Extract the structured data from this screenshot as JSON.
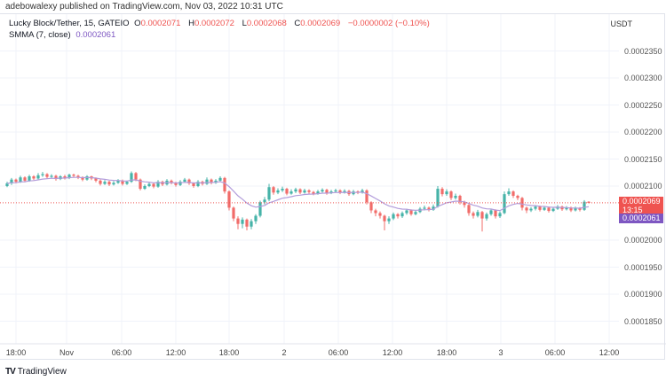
{
  "published": "adebowalexy published on TradingView.com, Nov 03, 2022 10:31 UTC",
  "legend": {
    "symbol": "Lucky Block/Tether, 15, GATEIO",
    "o_label": "O",
    "o": "0.0002071",
    "h_label": "H",
    "h": "0.0002072",
    "l_label": "L",
    "l": "0.0002068",
    "c_label": "C",
    "c": "0.0002069",
    "change": "−0.0000002 (−0.10%)",
    "indicator": "SMMA (7, close)",
    "indicator_value": "0.0002061"
  },
  "currency": "USDT",
  "price_label": {
    "value": "0.0002069",
    "countdown": "13:15"
  },
  "smma_label": "0.0002061",
  "footer_brand": "TradingView",
  "colors": {
    "up": "#26a69a",
    "down": "#ef5350",
    "smma": "#b39ddb",
    "price_line": "#ef5350",
    "smma_badge": "#7e57c2",
    "grid": "#f0f3fa"
  },
  "chart_data": {
    "type": "candlestick",
    "interval": "15",
    "ylim": [
      0.000183,
      0.0002385
    ],
    "grid": true,
    "y_ticks": [
      "0.0002350",
      "0.0002300",
      "0.0002250",
      "0.0002200",
      "0.0002150",
      "0.0002100",
      "0.0002000",
      "0.0001950",
      "0.0001900",
      "0.0001850"
    ],
    "x_ticks": [
      "18:00",
      "Nov",
      "06:00",
      "12:00",
      "18:00",
      "2",
      "06:00",
      "12:00",
      "18:00",
      "3",
      "06:00",
      "12:00"
    ],
    "smma_period": 7,
    "ohlc": [
      [
        0.00021,
        0.0002108,
        0.0002098,
        0.0002105
      ],
      [
        0.0002105,
        0.0002115,
        0.0002102,
        0.0002112
      ],
      [
        0.0002112,
        0.0002114,
        0.0002105,
        0.0002108
      ],
      [
        0.0002108,
        0.0002119,
        0.0002106,
        0.0002116
      ],
      [
        0.0002116,
        0.0002118,
        0.0002107,
        0.000211
      ],
      [
        0.000211,
        0.0002121,
        0.0002108,
        0.0002118
      ],
      [
        0.0002118,
        0.000212,
        0.0002111,
        0.0002114
      ],
      [
        0.0002114,
        0.0002124,
        0.0002112,
        0.000212
      ],
      [
        0.000212,
        0.0002126,
        0.0002117,
        0.0002122
      ],
      [
        0.0002122,
        0.0002124,
        0.0002114,
        0.0002117
      ],
      [
        0.0002117,
        0.0002122,
        0.0002115,
        0.0002119
      ],
      [
        0.0002119,
        0.0002121,
        0.000211,
        0.0002113
      ],
      [
        0.0002113,
        0.000212,
        0.0002111,
        0.0002118
      ],
      [
        0.0002118,
        0.0002121,
        0.0002112,
        0.0002115
      ],
      [
        0.0002115,
        0.0002123,
        0.0002113,
        0.0002121
      ],
      [
        0.0002121,
        0.0002123,
        0.0002116,
        0.0002119
      ],
      [
        0.0002119,
        0.0002121,
        0.0002113,
        0.0002116
      ],
      [
        0.0002116,
        0.0002118,
        0.0002109,
        0.0002112
      ],
      [
        0.0002112,
        0.000212,
        0.000211,
        0.0002118
      ],
      [
        0.0002118,
        0.0002119,
        0.0002111,
        0.0002114
      ],
      [
        0.0002114,
        0.0002116,
        0.0002107,
        0.000211
      ],
      [
        0.000211,
        0.0002112,
        0.0002101,
        0.0002104
      ],
      [
        0.0002104,
        0.0002111,
        0.0002102,
        0.0002108
      ],
      [
        0.0002108,
        0.000211,
        0.00021,
        0.0002103
      ],
      [
        0.0002103,
        0.0002109,
        0.0002101,
        0.0002106
      ],
      [
        0.0002106,
        0.0002113,
        0.0002104,
        0.000211
      ],
      [
        0.000211,
        0.0002112,
        0.0002101,
        0.0002104
      ],
      [
        0.0002104,
        0.000211,
        0.0002102,
        0.0002108
      ],
      [
        0.0002108,
        0.0002127,
        0.0002106,
        0.0002124
      ],
      [
        0.0002124,
        0.0002126,
        0.0002109,
        0.0002112
      ],
      [
        0.0002112,
        0.0002114,
        0.0002092,
        0.0002095
      ],
      [
        0.0002095,
        0.0002103,
        0.0002093,
        0.00021
      ],
      [
        0.00021,
        0.0002107,
        0.0002098,
        0.0002104
      ],
      [
        0.0002104,
        0.0002106,
        0.0002096,
        0.0002099
      ],
      [
        0.0002099,
        0.0002111,
        0.0002097,
        0.0002108
      ],
      [
        0.0002108,
        0.000211,
        0.00021,
        0.0002103
      ],
      [
        0.0002103,
        0.0002113,
        0.0002101,
        0.000211
      ],
      [
        0.000211,
        0.0002112,
        0.0002103,
        0.0002106
      ],
      [
        0.0002106,
        0.0002108,
        0.0002099,
        0.0002102
      ],
      [
        0.0002102,
        0.0002111,
        0.00021,
        0.0002108
      ],
      [
        0.0002108,
        0.0002115,
        0.0002106,
        0.0002112
      ],
      [
        0.0002112,
        0.0002114,
        0.0002102,
        0.0002105
      ],
      [
        0.0002105,
        0.0002107,
        0.0002097,
        0.00021
      ],
      [
        0.00021,
        0.0002111,
        0.0002098,
        0.0002108
      ],
      [
        0.0002108,
        0.000211,
        0.0002101,
        0.0002104
      ],
      [
        0.0002104,
        0.0002116,
        0.0002102,
        0.0002112
      ],
      [
        0.0002112,
        0.0002114,
        0.0002103,
        0.0002106
      ],
      [
        0.0002106,
        0.0002113,
        0.0002104,
        0.000211
      ],
      [
        0.000211,
        0.0002118,
        0.0002108,
        0.0002115
      ],
      [
        0.0002115,
        0.0002117,
        0.0002086,
        0.000209
      ],
      [
        0.000209,
        0.0002092,
        0.0002055,
        0.000206
      ],
      [
        0.000206,
        0.0002062,
        0.0002035,
        0.000204
      ],
      [
        0.000204,
        0.0002044,
        0.000202,
        0.000203
      ],
      [
        0.000203,
        0.0002042,
        0.0002022,
        0.0002038
      ],
      [
        0.0002038,
        0.000204,
        0.0002018,
        0.0002025
      ],
      [
        0.0002025,
        0.0002039,
        0.000202,
        0.0002035
      ],
      [
        0.0002035,
        0.0002048,
        0.000203,
        0.0002045
      ],
      [
        0.0002045,
        0.0002073,
        0.0002042,
        0.000207
      ],
      [
        0.000207,
        0.000208,
        0.0002066,
        0.0002075
      ],
      [
        0.0002075,
        0.0002104,
        0.0002072,
        0.0002098
      ],
      [
        0.0002098,
        0.00021,
        0.0002084,
        0.0002088
      ],
      [
        0.0002088,
        0.0002096,
        0.0002085,
        0.0002092
      ],
      [
        0.0002092,
        0.0002099,
        0.0002089,
        0.0002095
      ],
      [
        0.0002095,
        0.0002097,
        0.0002083,
        0.0002086
      ],
      [
        0.0002086,
        0.0002094,
        0.0002084,
        0.000209
      ],
      [
        0.000209,
        0.0002097,
        0.0002087,
        0.0002094
      ],
      [
        0.0002094,
        0.0002096,
        0.0002085,
        0.0002088
      ],
      [
        0.0002088,
        0.0002095,
        0.0002086,
        0.0002092
      ],
      [
        0.0002092,
        0.0002094,
        0.0002086,
        0.0002089
      ],
      [
        0.0002089,
        0.0002091,
        0.0002083,
        0.0002086
      ],
      [
        0.0002086,
        0.0002093,
        0.0002084,
        0.000209
      ],
      [
        0.000209,
        0.0002096,
        0.0002088,
        0.0002093
      ],
      [
        0.0002093,
        0.0002095,
        0.0002084,
        0.0002087
      ],
      [
        0.0002087,
        0.0002093,
        0.0002085,
        0.000209
      ],
      [
        0.000209,
        0.0002095,
        0.0002088,
        0.0002092
      ],
      [
        0.0002092,
        0.0002094,
        0.0002085,
        0.0002088
      ],
      [
        0.0002088,
        0.0002094,
        0.0002086,
        0.0002091
      ],
      [
        0.0002091,
        0.0002093,
        0.0002082,
        0.0002085
      ],
      [
        0.0002085,
        0.0002093,
        0.0002083,
        0.000209
      ],
      [
        0.000209,
        0.0002092,
        0.0002085,
        0.0002088
      ],
      [
        0.0002088,
        0.0002095,
        0.0002086,
        0.0002092
      ],
      [
        0.0002092,
        0.0002094,
        0.0002066,
        0.000207
      ],
      [
        0.000207,
        0.0002072,
        0.000205,
        0.0002055
      ],
      [
        0.0002055,
        0.0002058,
        0.0002044,
        0.000205
      ],
      [
        0.000205,
        0.0002053,
        0.000204,
        0.0002045
      ],
      [
        0.0002045,
        0.0002047,
        0.0002018,
        0.0002035
      ],
      [
        0.0002035,
        0.0002044,
        0.000203,
        0.000204
      ],
      [
        0.000204,
        0.0002051,
        0.0002037,
        0.0002048
      ],
      [
        0.0002048,
        0.000205,
        0.000204,
        0.0002044
      ],
      [
        0.0002044,
        0.0002053,
        0.0002041,
        0.000205
      ],
      [
        0.000205,
        0.0002058,
        0.0002047,
        0.0002055
      ],
      [
        0.0002055,
        0.0002057,
        0.0002045,
        0.0002048
      ],
      [
        0.0002048,
        0.0002055,
        0.0002046,
        0.0002052
      ],
      [
        0.0002052,
        0.0002061,
        0.000205,
        0.0002058
      ],
      [
        0.0002058,
        0.0002064,
        0.0002055,
        0.000206
      ],
      [
        0.000206,
        0.0002062,
        0.0002053,
        0.0002056
      ],
      [
        0.0002056,
        0.0002066,
        0.0002054,
        0.0002062
      ],
      [
        0.0002062,
        0.00021,
        0.000206,
        0.0002095
      ],
      [
        0.0002095,
        0.0002098,
        0.0002081,
        0.0002085
      ],
      [
        0.0002085,
        0.0002094,
        0.0002082,
        0.000209
      ],
      [
        0.000209,
        0.0002092,
        0.0002074,
        0.0002078
      ],
      [
        0.0002078,
        0.0002086,
        0.0002075,
        0.0002082
      ],
      [
        0.0002082,
        0.0002084,
        0.0002066,
        0.000207
      ],
      [
        0.000207,
        0.0002073,
        0.000206,
        0.0002065
      ],
      [
        0.0002065,
        0.0002067,
        0.0002045,
        0.000205
      ],
      [
        0.000205,
        0.0002053,
        0.000204,
        0.0002045
      ],
      [
        0.0002045,
        0.0002056,
        0.0002042,
        0.0002052
      ],
      [
        0.0002052,
        0.0002054,
        0.0002016,
        0.000204
      ],
      [
        0.000204,
        0.0002051,
        0.0002036,
        0.0002048
      ],
      [
        0.0002048,
        0.0002058,
        0.0002045,
        0.0002055
      ],
      [
        0.0002055,
        0.0002057,
        0.000204,
        0.0002044
      ],
      [
        0.0002044,
        0.0002053,
        0.0002041,
        0.000205
      ],
      [
        0.000205,
        0.000209,
        0.0002048,
        0.0002085
      ],
      [
        0.0002085,
        0.0002096,
        0.0002082,
        0.000209
      ],
      [
        0.000209,
        0.0002092,
        0.0002078,
        0.0002082
      ],
      [
        0.0002082,
        0.0002084,
        0.0002074,
        0.0002078
      ],
      [
        0.0002078,
        0.000208,
        0.0002055,
        0.000206
      ],
      [
        0.000206,
        0.0002062,
        0.000205,
        0.0002055
      ],
      [
        0.0002055,
        0.0002061,
        0.0002052,
        0.0002058
      ],
      [
        0.0002058,
        0.0002065,
        0.0002055,
        0.0002062
      ],
      [
        0.0002062,
        0.0002064,
        0.0002053,
        0.0002056
      ],
      [
        0.0002056,
        0.0002063,
        0.0002054,
        0.000206
      ],
      [
        0.000206,
        0.0002062,
        0.0002051,
        0.0002054
      ],
      [
        0.0002054,
        0.0002061,
        0.0002052,
        0.0002058
      ],
      [
        0.0002058,
        0.0002065,
        0.0002056,
        0.0002062
      ],
      [
        0.0002062,
        0.0002064,
        0.0002054,
        0.0002057
      ],
      [
        0.0002057,
        0.0002063,
        0.0002055,
        0.000206
      ],
      [
        0.000206,
        0.0002062,
        0.0002052,
        0.0002055
      ],
      [
        0.0002055,
        0.0002062,
        0.0002053,
        0.0002059
      ],
      [
        0.0002059,
        0.0002061,
        0.0002053,
        0.0002056
      ],
      [
        0.0002056,
        0.0002074,
        0.0002054,
        0.0002071
      ],
      [
        0.0002071,
        0.0002072,
        0.0002068,
        0.0002069
      ]
    ]
  }
}
